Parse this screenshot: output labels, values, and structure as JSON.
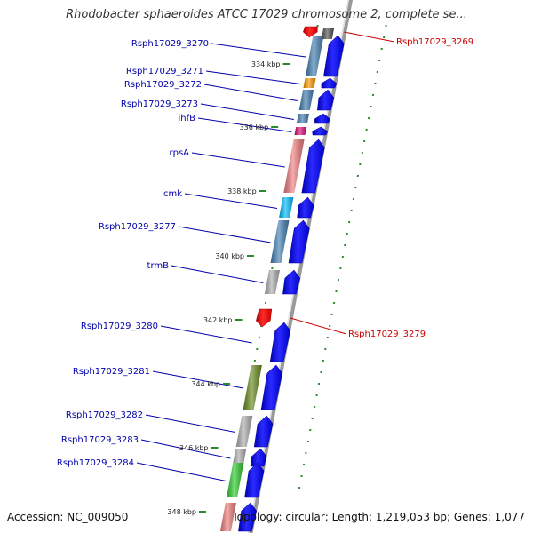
{
  "title": "Rhodobacter sphaeroides ATCC 17029 chromosome 2, complete se...",
  "footer": {
    "accession": "Accession: NC_009050",
    "summary": "Topology: circular; Length: 1,219,053 bp; Genes: 1,077"
  },
  "colors": {
    "forward_gene": "#0000ee",
    "reverse_gene": "#ee0000",
    "forward_label": "#0000aa",
    "reverse_label": "#cc0000",
    "backbone": "#999999",
    "tick": "#2a8a2a"
  },
  "kbp_ticks": [
    {
      "label": "334 kbp"
    },
    {
      "label": "336 kbp"
    },
    {
      "label": "338 kbp"
    },
    {
      "label": "340 kbp"
    },
    {
      "label": "342 kbp"
    },
    {
      "label": "344 kbp"
    },
    {
      "label": "346 kbp"
    },
    {
      "label": "348 kbp"
    }
  ],
  "genes_forward": [
    {
      "name": "Rsph17029_3270",
      "cog_color": "#4682b4"
    },
    {
      "name": "Rsph17029_3271",
      "cog_color": "#ff9900"
    },
    {
      "name": "Rsph17029_3272",
      "cog_color": "#4682b4"
    },
    {
      "name": "Rsph17029_3273",
      "cog_color": "#4682b4"
    },
    {
      "name": "ihfB",
      "cog_color": "#e0107a"
    },
    {
      "name": "rpsA",
      "cog_color": "#f08080"
    },
    {
      "name": "cmk",
      "cog_color": "#00bfff"
    },
    {
      "name": "Rsph17029_3277",
      "cog_color": "#4682b4"
    },
    {
      "name": "trmB",
      "cog_color": "#b0b0b0"
    },
    {
      "name": "Rsph17029_3280",
      "cog_color": ""
    },
    {
      "name": "Rsph17029_3281",
      "cog_color": "#6b8e23"
    },
    {
      "name": "Rsph17029_3282",
      "cog_color": "#b0b0b0"
    },
    {
      "name": "Rsph17029_3283",
      "cog_color": "#b0b0b0"
    },
    {
      "name": "Rsph17029_3284",
      "cog_color": "#32cd32"
    },
    {
      "name": "",
      "cog_color": "#f08080"
    }
  ],
  "genes_reverse": [
    {
      "name": "Rsph17029_3269",
      "cog_color": "#555555"
    },
    {
      "name": "Rsph17029_3279",
      "cog_color": ""
    }
  ]
}
